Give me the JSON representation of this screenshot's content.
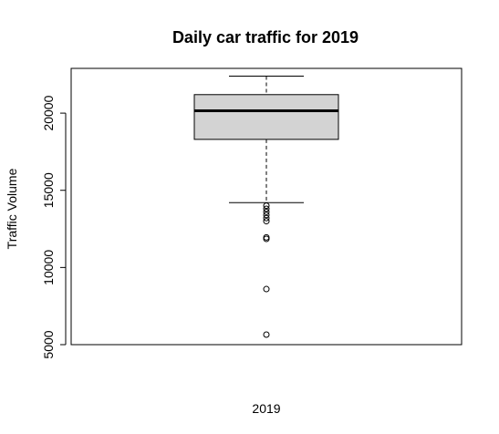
{
  "chart_data": {
    "type": "boxplot",
    "title": "Daily car traffic for 2019",
    "ylabel": "Traffic Volume",
    "xlabel": "",
    "categories": [
      "2019"
    ],
    "ylim": [
      5000,
      22900
    ],
    "yticks": [
      5000,
      10000,
      15000,
      20000
    ],
    "grid": false,
    "box_fill": "#d3d3d3",
    "stroke": "#000000",
    "boxes": [
      {
        "category": "2019",
        "whisker_low": 14200,
        "q1": 18300,
        "median": 20150,
        "q3": 21200,
        "whisker_high": 22400,
        "outliers": [
          14000,
          13800,
          13600,
          13400,
          13200,
          13000,
          11950,
          11850,
          8600,
          5650
        ]
      }
    ]
  }
}
